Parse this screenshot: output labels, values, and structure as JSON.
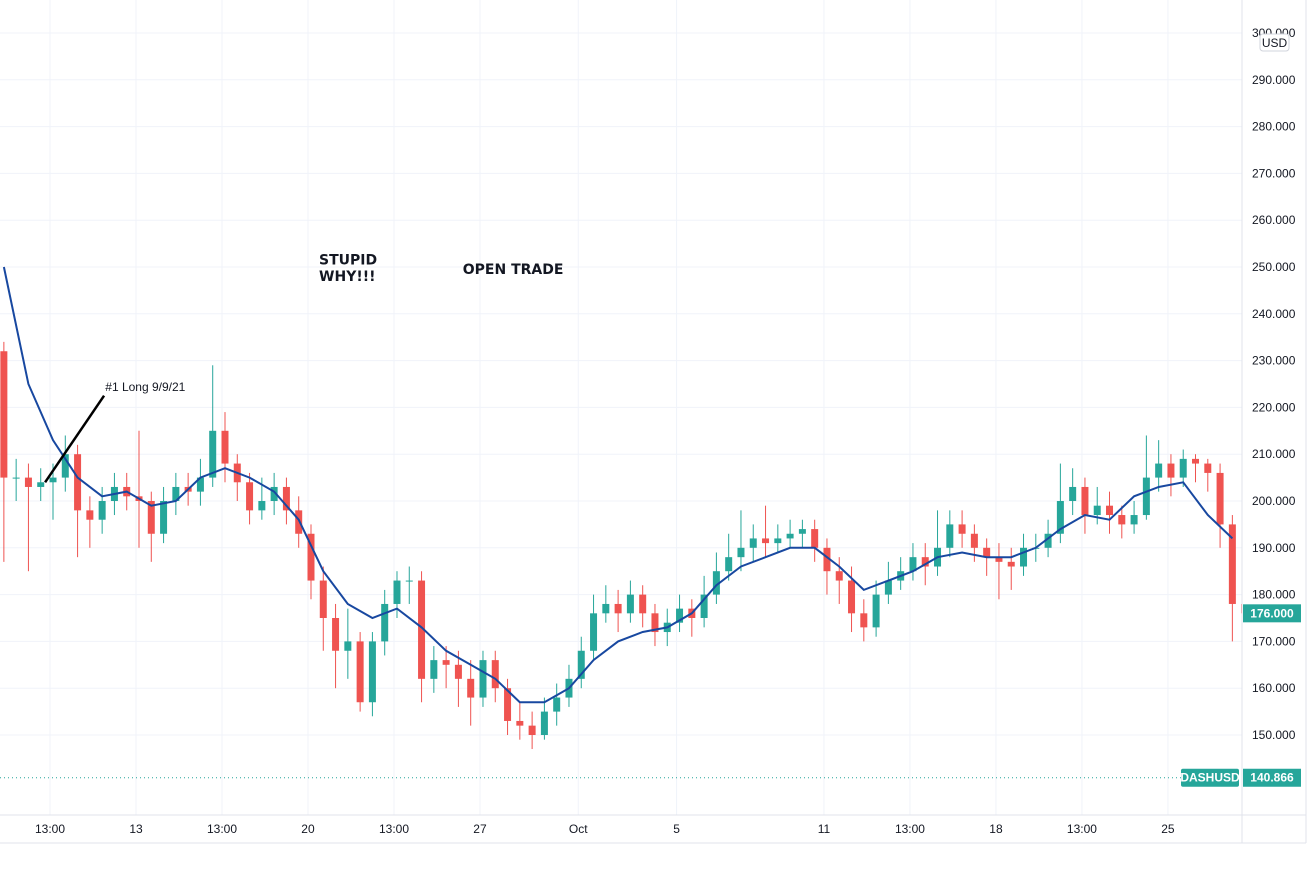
{
  "chart_data": {
    "type": "candlestick",
    "symbol": "DASHUSD",
    "currency_label": "USD",
    "ylim": [
      130,
      300
    ],
    "y_ticks": [
      "150.000",
      "160.000",
      "170.000",
      "180.000",
      "190.000",
      "200.000",
      "210.000",
      "220.000",
      "230.000",
      "240.000",
      "250.000",
      "260.000",
      "270.000",
      "280.000",
      "290.000",
      "300.000"
    ],
    "y_tick_values": [
      150,
      160,
      170,
      180,
      190,
      200,
      210,
      220,
      230,
      240,
      250,
      260,
      270,
      280,
      290,
      300
    ],
    "x_unit": "days since Sep 1 (candle interval 0.5 day)",
    "x_start_day": 6.5,
    "candle_interval_days": 0.5,
    "x_range_days": [
      6.47,
      56.9
    ],
    "x_ticks": [
      {
        "label": "13:00",
        "day": 8.5
      },
      {
        "label": "13",
        "day": 12
      },
      {
        "label": "13:00",
        "day": 15.5
      },
      {
        "label": "20",
        "day": 19
      },
      {
        "label": "13:00",
        "day": 22.5
      },
      {
        "label": "27",
        "day": 26
      },
      {
        "label": "Oct",
        "day": 30
      },
      {
        "label": "5",
        "day": 34
      },
      {
        "label": "11",
        "day": 40
      },
      {
        "label": "13:00",
        "day": 43.5
      },
      {
        "label": "18",
        "day": 47
      },
      {
        "label": "13:00",
        "day": 50.5
      },
      {
        "label": "25",
        "day": 54
      }
    ],
    "first_open": 232,
    "close": [
      205,
      205,
      203,
      204,
      205,
      210,
      198,
      196,
      200,
      203,
      201,
      200,
      193,
      200,
      203,
      202,
      205,
      215,
      208,
      204,
      198,
      200,
      203,
      198,
      193,
      183,
      175,
      168,
      170,
      157,
      170,
      178,
      183,
      183,
      162,
      166,
      165,
      162,
      158,
      166,
      160,
      153,
      152,
      150,
      155,
      158,
      162,
      168,
      176,
      178,
      176,
      180,
      176,
      172,
      174,
      177,
      175,
      180,
      185,
      188,
      190,
      192,
      191,
      192,
      193,
      194,
      190,
      185,
      183,
      176,
      173,
      180,
      183,
      185,
      188,
      186,
      190,
      195,
      193,
      190,
      188,
      187,
      186,
      190,
      190,
      193,
      200,
      203,
      197,
      199,
      197,
      195,
      197,
      205,
      208,
      205,
      209,
      208,
      206,
      195,
      178,
      176
    ],
    "high": [
      234,
      209,
      208,
      207,
      208,
      214,
      212,
      201,
      203,
      206,
      206,
      215,
      202,
      203,
      206,
      206,
      209,
      229,
      219,
      210,
      206,
      205,
      206,
      205,
      201,
      195,
      186,
      178,
      177,
      172,
      172,
      181,
      185,
      186,
      185,
      169,
      169,
      168,
      166,
      168,
      168,
      162,
      157,
      155,
      158,
      161,
      165,
      171,
      180,
      182,
      181,
      183,
      182,
      178,
      177,
      180,
      179,
      184,
      189,
      193,
      198,
      195,
      199,
      195,
      196,
      196,
      196,
      192,
      188,
      186,
      179,
      183,
      187,
      188,
      191,
      191,
      198,
      198,
      198,
      195,
      192,
      191,
      190,
      193,
      193,
      196,
      208,
      207,
      205,
      203,
      202,
      199,
      200,
      214,
      213,
      210,
      211,
      210,
      209,
      208,
      197,
      180
    ],
    "low": [
      187,
      200,
      185,
      200,
      196,
      202,
      188,
      190,
      193,
      197,
      198,
      190,
      187,
      191,
      197,
      199,
      199,
      203,
      204,
      200,
      195,
      196,
      197,
      195,
      190,
      179,
      168,
      160,
      162,
      155,
      154,
      167,
      175,
      178,
      157,
      159,
      160,
      156,
      152,
      156,
      157,
      150,
      149,
      147,
      149,
      152,
      156,
      160,
      166,
      174,
      172,
      174,
      173,
      169,
      169,
      172,
      171,
      173,
      178,
      183,
      185,
      187,
      188,
      189,
      190,
      190,
      187,
      180,
      178,
      172,
      170,
      171,
      178,
      181,
      183,
      182,
      184,
      188,
      190,
      187,
      184,
      179,
      181,
      184,
      187,
      188,
      191,
      197,
      193,
      195,
      193,
      192,
      193,
      196,
      202,
      201,
      203,
      204,
      202,
      190,
      170,
      174
    ],
    "ma_series": {
      "name": "Moving average",
      "start_day": 6.5,
      "step_days": 1,
      "values": [
        250,
        225,
        213,
        205,
        201,
        202,
        199,
        200,
        205,
        207,
        205,
        202,
        196,
        185,
        178,
        175,
        177,
        173,
        168,
        165,
        162,
        157,
        157,
        160,
        166,
        170,
        172,
        173,
        176,
        182,
        186,
        188,
        190,
        190,
        186,
        181,
        183,
        185,
        188,
        189,
        188,
        188,
        190,
        194,
        197,
        196,
        201,
        203,
        204,
        197,
        192
      ]
    },
    "last_price": "176.000",
    "reference_line": {
      "label": "DASHUSD",
      "value_text": "140.866",
      "value": 140.866
    },
    "annotations": [
      {
        "text": "#1 Long 9/9/21",
        "day": 10.75,
        "price": 223.5,
        "line": {
          "from": [
            8.3,
            204
          ],
          "to": [
            10.7,
            222.5
          ]
        }
      },
      {
        "text": "STUPID",
        "day": 19.45,
        "price": 250.5
      },
      {
        "text": "WHY!!!",
        "day": 19.45,
        "price": 247
      },
      {
        "text": "OPEN TRADE",
        "day": 25.3,
        "price": 248.5
      }
    ],
    "colors": {
      "up": "#26a69a",
      "down": "#ef5350",
      "ma": "#1848a0",
      "grid": "#f0f3fa",
      "tag": "#26a69a"
    }
  }
}
